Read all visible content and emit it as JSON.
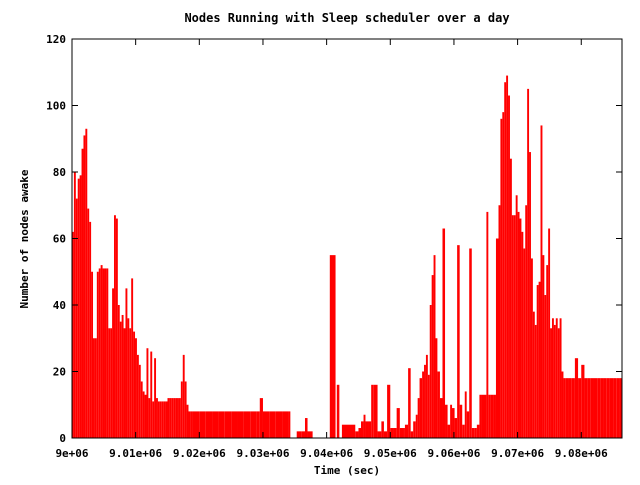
{
  "chart_data": {
    "type": "bar",
    "title": "Nodes Running with Sleep scheduler over a day",
    "xlabel": "Time (sec)",
    "ylabel": "Number of nodes awake",
    "xlim": [
      9000000,
      9086400
    ],
    "ylim": [
      0,
      120
    ],
    "x_tick_labels": [
      "9e+06",
      "9.01e+06",
      "9.02e+06",
      "9.03e+06",
      "9.04e+06",
      "9.05e+06",
      "9.06e+06",
      "9.07e+06",
      "9.08e+06"
    ],
    "x_ticks": [
      9000000,
      9010000,
      9020000,
      9030000,
      9040000,
      9050000,
      9060000,
      9070000,
      9080000
    ],
    "y_tick_labels": [
      "0",
      "20",
      "40",
      "60",
      "80",
      "100",
      "120"
    ],
    "y_ticks": [
      0,
      20,
      40,
      60,
      80,
      100,
      120
    ],
    "grid": false,
    "legend": "none",
    "color": "#ff0000",
    "series": [
      {
        "points": [
          [
            9000000,
            62
          ],
          [
            9000300,
            80
          ],
          [
            9000600,
            72
          ],
          [
            9000900,
            78
          ],
          [
            9001200,
            79
          ],
          [
            9001500,
            87
          ],
          [
            9001800,
            91
          ],
          [
            9002100,
            93
          ],
          [
            9002400,
            69
          ],
          [
            9002700,
            65
          ],
          [
            9003000,
            50
          ],
          [
            9003300,
            30
          ],
          [
            9003600,
            30
          ],
          [
            9003900,
            50
          ],
          [
            9004200,
            51
          ],
          [
            9004500,
            52
          ],
          [
            9004800,
            51
          ],
          [
            9005100,
            51
          ],
          [
            9005400,
            51
          ],
          [
            9005700,
            33
          ],
          [
            9006000,
            33
          ],
          [
            9006300,
            45
          ],
          [
            9006600,
            67
          ],
          [
            9006900,
            66
          ],
          [
            9007200,
            40
          ],
          [
            9007500,
            35
          ],
          [
            9007800,
            37
          ],
          [
            9008100,
            33
          ],
          [
            9008400,
            45
          ],
          [
            9008700,
            36
          ],
          [
            9009000,
            33
          ],
          [
            9009300,
            48
          ],
          [
            9009600,
            32
          ],
          [
            9009900,
            30
          ],
          [
            9010200,
            25
          ],
          [
            9010500,
            22
          ],
          [
            9010800,
            17
          ],
          [
            9011100,
            14
          ],
          [
            9011400,
            13
          ],
          [
            9011700,
            27
          ],
          [
            9012000,
            12
          ],
          [
            9012300,
            26
          ],
          [
            9012600,
            11
          ],
          [
            9012900,
            24
          ],
          [
            9013200,
            12
          ],
          [
            9013500,
            11
          ],
          [
            9013800,
            11
          ],
          [
            9014100,
            11
          ],
          [
            9014400,
            11
          ],
          [
            9014700,
            11
          ],
          [
            9015000,
            12
          ],
          [
            9015300,
            12
          ],
          [
            9015600,
            12
          ],
          [
            9015900,
            12
          ],
          [
            9016200,
            12
          ],
          [
            9016500,
            12
          ],
          [
            9016800,
            12
          ],
          [
            9017100,
            17
          ],
          [
            9017400,
            25
          ],
          [
            9017700,
            17
          ],
          [
            9018000,
            10
          ],
          [
            9018300,
            8
          ],
          [
            9018600,
            8
          ],
          [
            9019000,
            8
          ],
          [
            9020000,
            8
          ],
          [
            9021000,
            8
          ],
          [
            9022000,
            8
          ],
          [
            9023000,
            8
          ],
          [
            9024000,
            8
          ],
          [
            9025000,
            8
          ],
          [
            9026000,
            8
          ],
          [
            9027000,
            8
          ],
          [
            9028000,
            8
          ],
          [
            9029000,
            8
          ],
          [
            9029500,
            12
          ],
          [
            9030000,
            8
          ],
          [
            9031000,
            8
          ],
          [
            9032000,
            8
          ],
          [
            9033000,
            8
          ],
          [
            9034000,
            8
          ],
          [
            9034300,
            0
          ],
          [
            9035300,
            2
          ],
          [
            9036000,
            2
          ],
          [
            9036600,
            6
          ],
          [
            9037000,
            2
          ],
          [
            9037800,
            0
          ],
          [
            9038200,
            0
          ],
          [
            9040500,
            55
          ],
          [
            9041000,
            55
          ],
          [
            9041400,
            0
          ],
          [
            9041600,
            16
          ],
          [
            9042000,
            0
          ],
          [
            9042400,
            4
          ],
          [
            9044500,
            2
          ],
          [
            9045000,
            3
          ],
          [
            9045400,
            5
          ],
          [
            9045800,
            7
          ],
          [
            9046100,
            5
          ],
          [
            9046500,
            5
          ],
          [
            9047000,
            16
          ],
          [
            9047400,
            16
          ],
          [
            9048000,
            2
          ],
          [
            9048600,
            5
          ],
          [
            9049000,
            2
          ],
          [
            9049500,
            16
          ],
          [
            9050000,
            3
          ],
          [
            9050500,
            3
          ],
          [
            9051000,
            9
          ],
          [
            9051500,
            3
          ],
          [
            9052000,
            3
          ],
          [
            9052300,
            4
          ],
          [
            9052800,
            21
          ],
          [
            9053200,
            2
          ],
          [
            9053600,
            5
          ],
          [
            9054000,
            7
          ],
          [
            9054300,
            12
          ],
          [
            9054600,
            18
          ],
          [
            9055000,
            20
          ],
          [
            9055300,
            22
          ],
          [
            9055600,
            25
          ],
          [
            9055900,
            19
          ],
          [
            9056200,
            40
          ],
          [
            9056500,
            49
          ],
          [
            9056800,
            55
          ],
          [
            9057100,
            30
          ],
          [
            9057400,
            20
          ],
          [
            9057800,
            12
          ],
          [
            9058200,
            63
          ],
          [
            9058600,
            10
          ],
          [
            9059000,
            4
          ],
          [
            9059400,
            10
          ],
          [
            9059700,
            9
          ],
          [
            9060100,
            6
          ],
          [
            9060500,
            58
          ],
          [
            9060900,
            10
          ],
          [
            9061300,
            4
          ],
          [
            9061700,
            14
          ],
          [
            9062000,
            8
          ],
          [
            9062400,
            57
          ],
          [
            9062800,
            3
          ],
          [
            9063200,
            3
          ],
          [
            9063600,
            4
          ],
          [
            9064000,
            13
          ],
          [
            9064400,
            13
          ],
          [
            9064800,
            13
          ],
          [
            9065100,
            68
          ],
          [
            9065400,
            13
          ],
          [
            9065800,
            13
          ],
          [
            9066200,
            13
          ],
          [
            9066600,
            60
          ],
          [
            9067000,
            70
          ],
          [
            9067300,
            96
          ],
          [
            9067600,
            98
          ],
          [
            9067900,
            107
          ],
          [
            9068200,
            109
          ],
          [
            9068500,
            103
          ],
          [
            9068800,
            84
          ],
          [
            9069100,
            67
          ],
          [
            9069400,
            67
          ],
          [
            9069700,
            73
          ],
          [
            9070000,
            68
          ],
          [
            9070300,
            66
          ],
          [
            9070600,
            62
          ],
          [
            9070900,
            57
          ],
          [
            9071200,
            70
          ],
          [
            9071500,
            105
          ],
          [
            9071800,
            86
          ],
          [
            9072100,
            54
          ],
          [
            9072400,
            38
          ],
          [
            9072700,
            34
          ],
          [
            9073000,
            46
          ],
          [
            9073300,
            47
          ],
          [
            9073600,
            94
          ],
          [
            9073900,
            55
          ],
          [
            9074200,
            43
          ],
          [
            9074500,
            52
          ],
          [
            9074800,
            63
          ],
          [
            9075100,
            33
          ],
          [
            9075400,
            36
          ],
          [
            9075700,
            34
          ],
          [
            9076000,
            36
          ],
          [
            9076300,
            33
          ],
          [
            9076600,
            36
          ],
          [
            9076900,
            20
          ],
          [
            9077200,
            18
          ],
          [
            9077500,
            18
          ],
          [
            9078000,
            18
          ],
          [
            9078500,
            18
          ],
          [
            9079000,
            24
          ],
          [
            9079500,
            18
          ],
          [
            9080000,
            22
          ],
          [
            9080500,
            18
          ],
          [
            9081000,
            18
          ],
          [
            9081500,
            18
          ],
          [
            9082000,
            18
          ],
          [
            9082500,
            18
          ],
          [
            9083000,
            18
          ],
          [
            9083500,
            18
          ],
          [
            9084000,
            18
          ],
          [
            9084500,
            18
          ],
          [
            9085000,
            18
          ],
          [
            9085500,
            18
          ],
          [
            9086000,
            18
          ]
        ]
      }
    ]
  }
}
